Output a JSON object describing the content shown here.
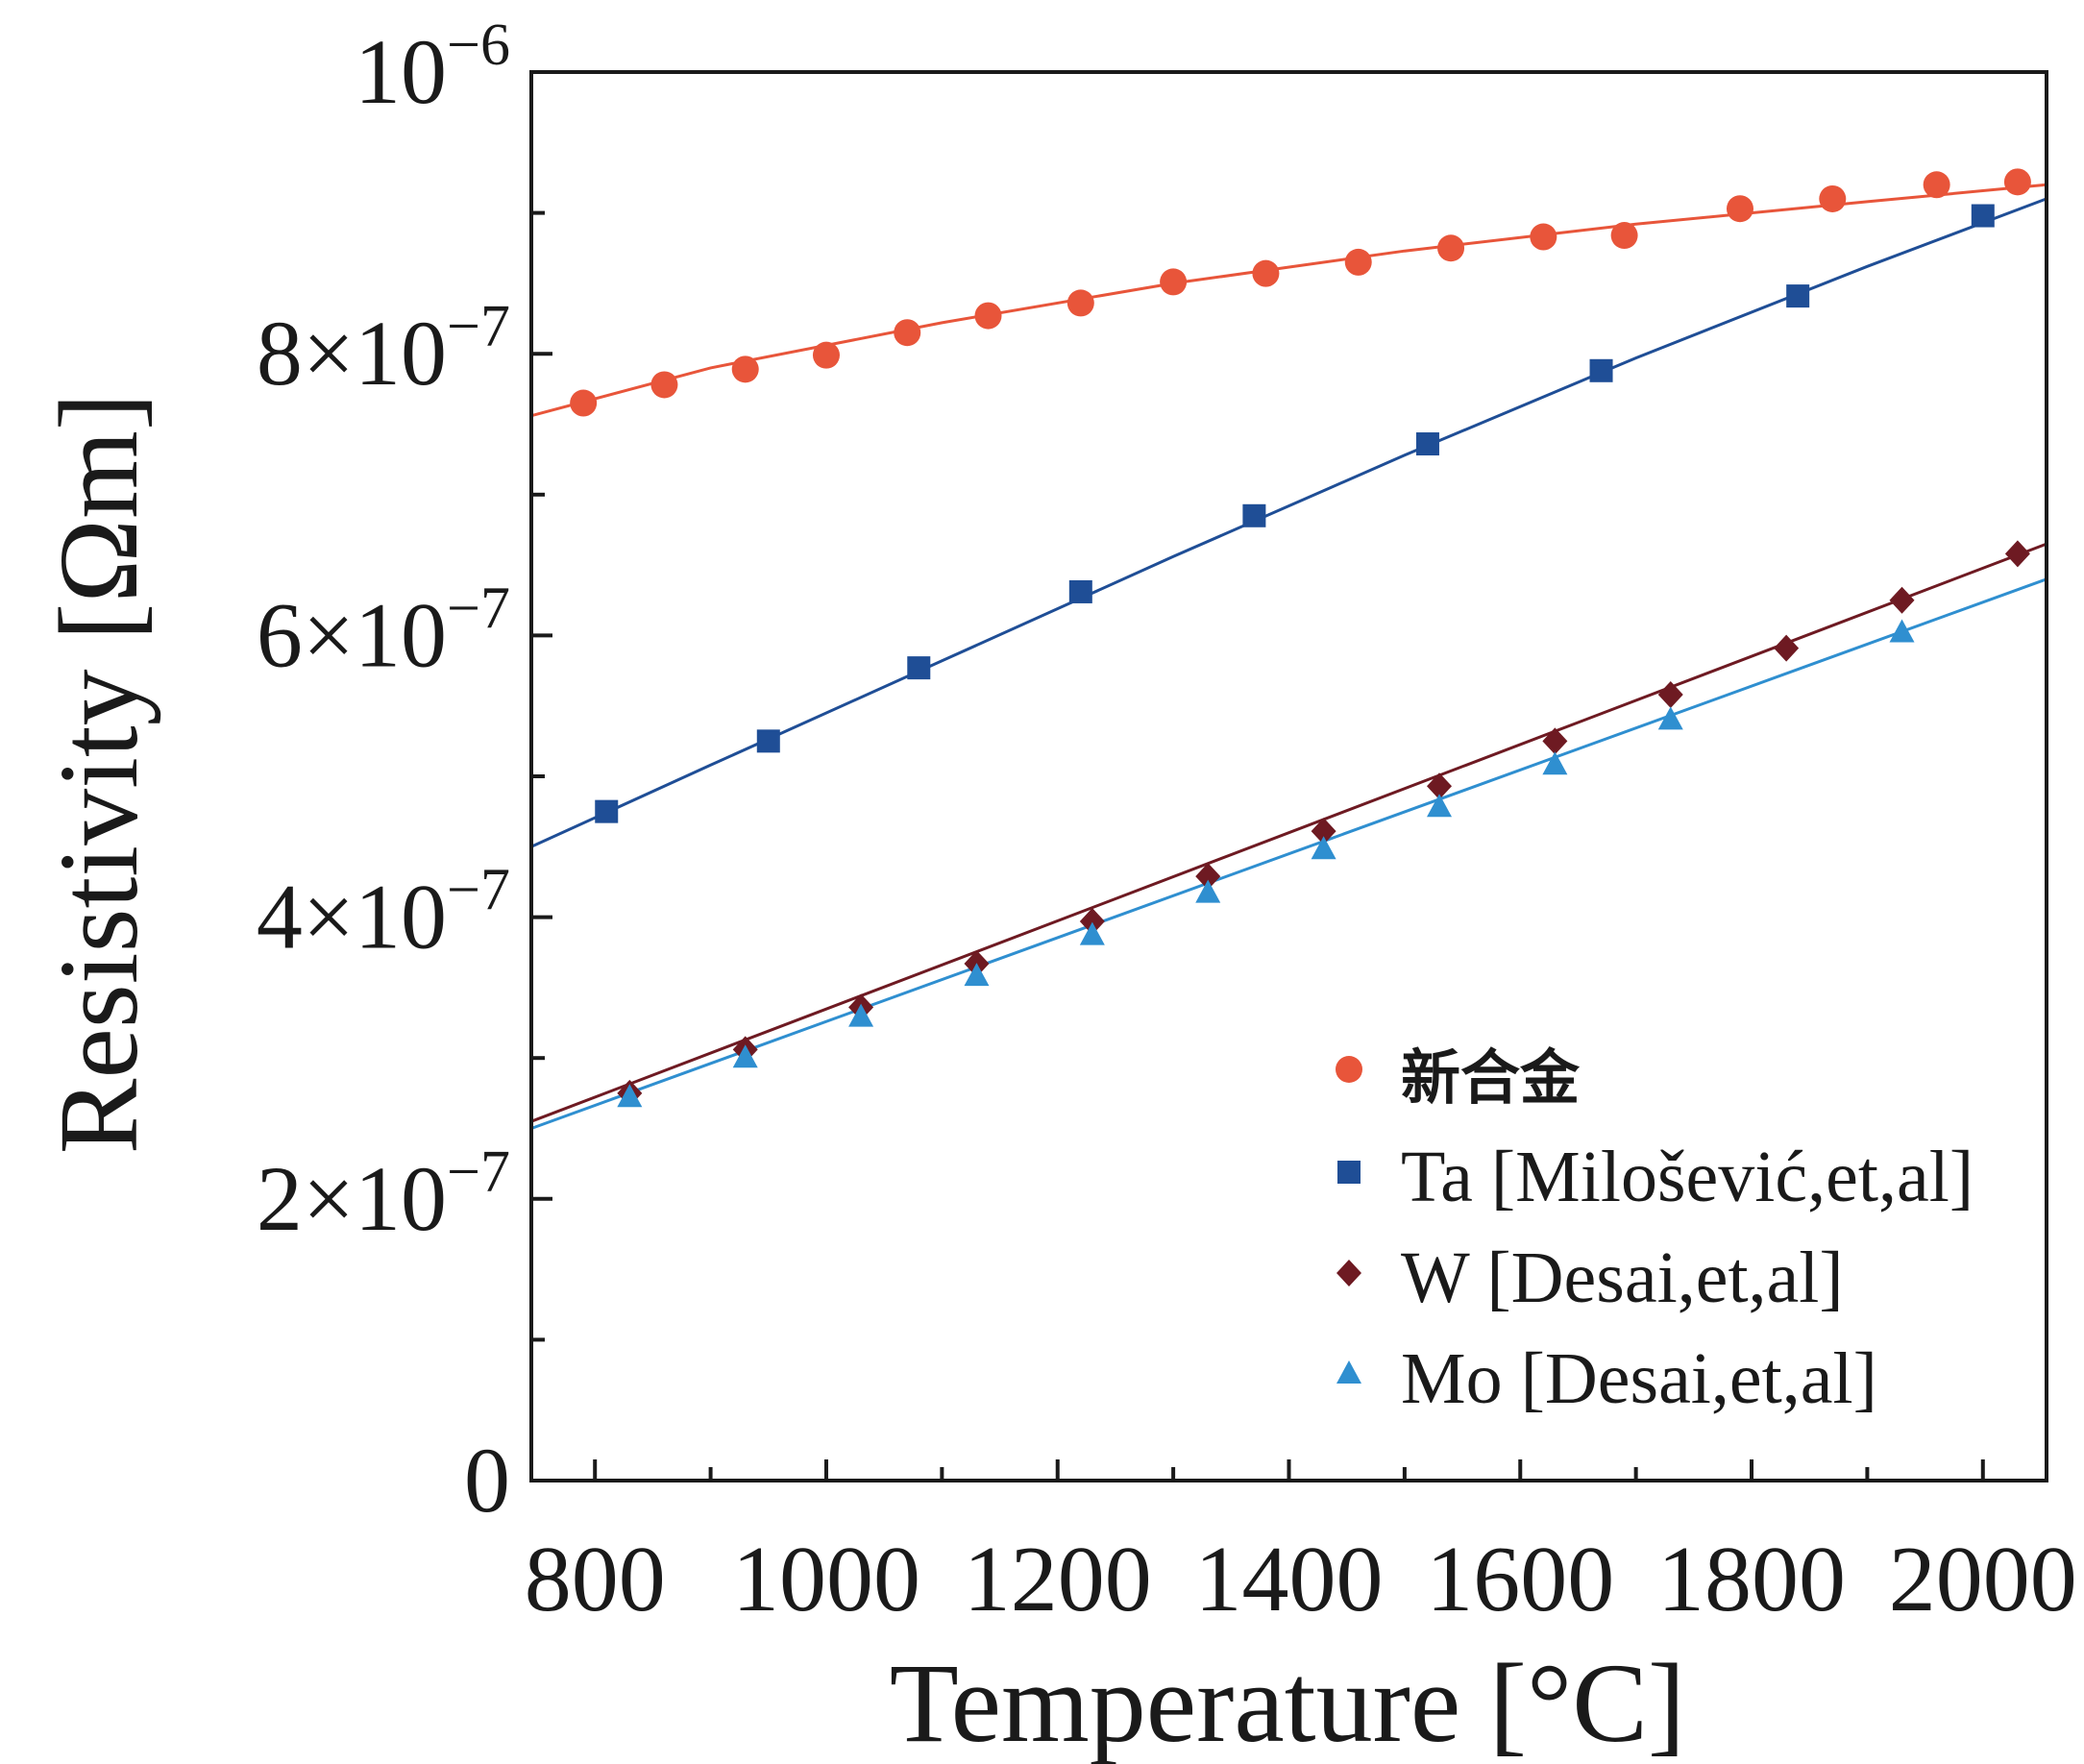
{
  "chart_data": {
    "type": "line",
    "xlabel": "Temperature [°C]",
    "ylabel": "Resistivity [Ωm]",
    "xlim": [
      745,
      2055
    ],
    "ylim": [
      0,
      1e-06
    ],
    "x_ticks": [
      800,
      1000,
      1200,
      1400,
      1600,
      1800,
      2000
    ],
    "x_tick_labels": [
      "800",
      "1000",
      "1200",
      "1400",
      "1600",
      "1800",
      "2000"
    ],
    "y_ticks": [
      0,
      2e-07,
      4e-07,
      6e-07,
      8e-07,
      1e-06
    ],
    "y_tick_labels": [
      {
        "mantissa": "0",
        "exponent": ""
      },
      {
        "mantissa": "2×10",
        "exponent": "−7"
      },
      {
        "mantissa": "4×10",
        "exponent": "−7"
      },
      {
        "mantissa": "6×10",
        "exponent": "−7"
      },
      {
        "mantissa": "8×10",
        "exponent": "−7"
      },
      {
        "mantissa": "10",
        "exponent": "−6"
      }
    ],
    "grid": false,
    "legend_position": "bottom-right",
    "series": [
      {
        "name": "新合金",
        "color": "#e8553a",
        "marker": "circle",
        "fit_line": {
          "x": [
            745,
            900,
            1100,
            1300,
            1500,
            1700,
            1900,
            2055
          ],
          "y": [
            7.56e-07,
            7.9e-07,
            8.22e-07,
            8.5e-07,
            8.73e-07,
            8.92e-07,
            9.08e-07,
            9.2e-07
          ]
        },
        "x": [
          790,
          860,
          930,
          1000,
          1070,
          1140,
          1220,
          1300,
          1380,
          1460,
          1540,
          1620,
          1690,
          1790,
          1870,
          1960,
          2030
        ],
        "y": [
          7.65e-07,
          7.78e-07,
          7.89e-07,
          7.99e-07,
          8.15e-07,
          8.27e-07,
          8.36e-07,
          8.51e-07,
          8.57e-07,
          8.65e-07,
          8.75e-07,
          8.83e-07,
          8.84e-07,
          9.03e-07,
          9.1e-07,
          9.2e-07,
          9.22e-07
        ]
      },
      {
        "name": "Ta [Milošević,et,al]",
        "color": "#1f4e96",
        "marker": "square",
        "fit_line": {
          "x": [
            745,
            900,
            1100,
            1300,
            1500,
            1700,
            1900,
            2055
          ],
          "y": [
            4.5e-07,
            5.08e-07,
            5.82e-07,
            6.56e-07,
            7.28e-07,
            7.97e-07,
            8.62e-07,
            9.1e-07
          ]
        },
        "x": [
          810,
          950,
          1080,
          1220,
          1370,
          1520,
          1670,
          1840,
          2000
        ],
        "y": [
          4.75e-07,
          5.25e-07,
          5.77e-07,
          6.31e-07,
          6.85e-07,
          7.36e-07,
          7.88e-07,
          8.41e-07,
          8.98e-07
        ]
      },
      {
        "name": "W [Desai,et,al]",
        "color": "#6e1a22",
        "marker": "diamond",
        "fit_line": {
          "x": [
            745,
            2055
          ],
          "y": [
            2.55e-07,
            6.65e-07
          ]
        },
        "x": [
          830,
          930,
          1030,
          1130,
          1230,
          1330,
          1430,
          1530,
          1630,
          1730,
          1830,
          1930,
          2030
        ],
        "y": [
          2.75e-07,
          3.06e-07,
          3.36e-07,
          3.67e-07,
          3.97e-07,
          4.29e-07,
          4.61e-07,
          4.93e-07,
          5.25e-07,
          5.58e-07,
          5.91e-07,
          6.25e-07,
          6.58e-07
        ]
      },
      {
        "name": "Mo [Desai,et,al]",
        "color": "#2f8fd0",
        "marker": "triangle",
        "fit_line": {
          "x": [
            745,
            2055
          ],
          "y": [
            2.5e-07,
            6.4e-07
          ]
        },
        "x": [
          830,
          930,
          1030,
          1130,
          1230,
          1330,
          1430,
          1530,
          1630,
          1730,
          1930
        ],
        "y": [
          2.72e-07,
          3e-07,
          3.29e-07,
          3.58e-07,
          3.87e-07,
          4.17e-07,
          4.48e-07,
          4.78e-07,
          5.08e-07,
          5.4e-07,
          6.02e-07
        ]
      }
    ]
  }
}
